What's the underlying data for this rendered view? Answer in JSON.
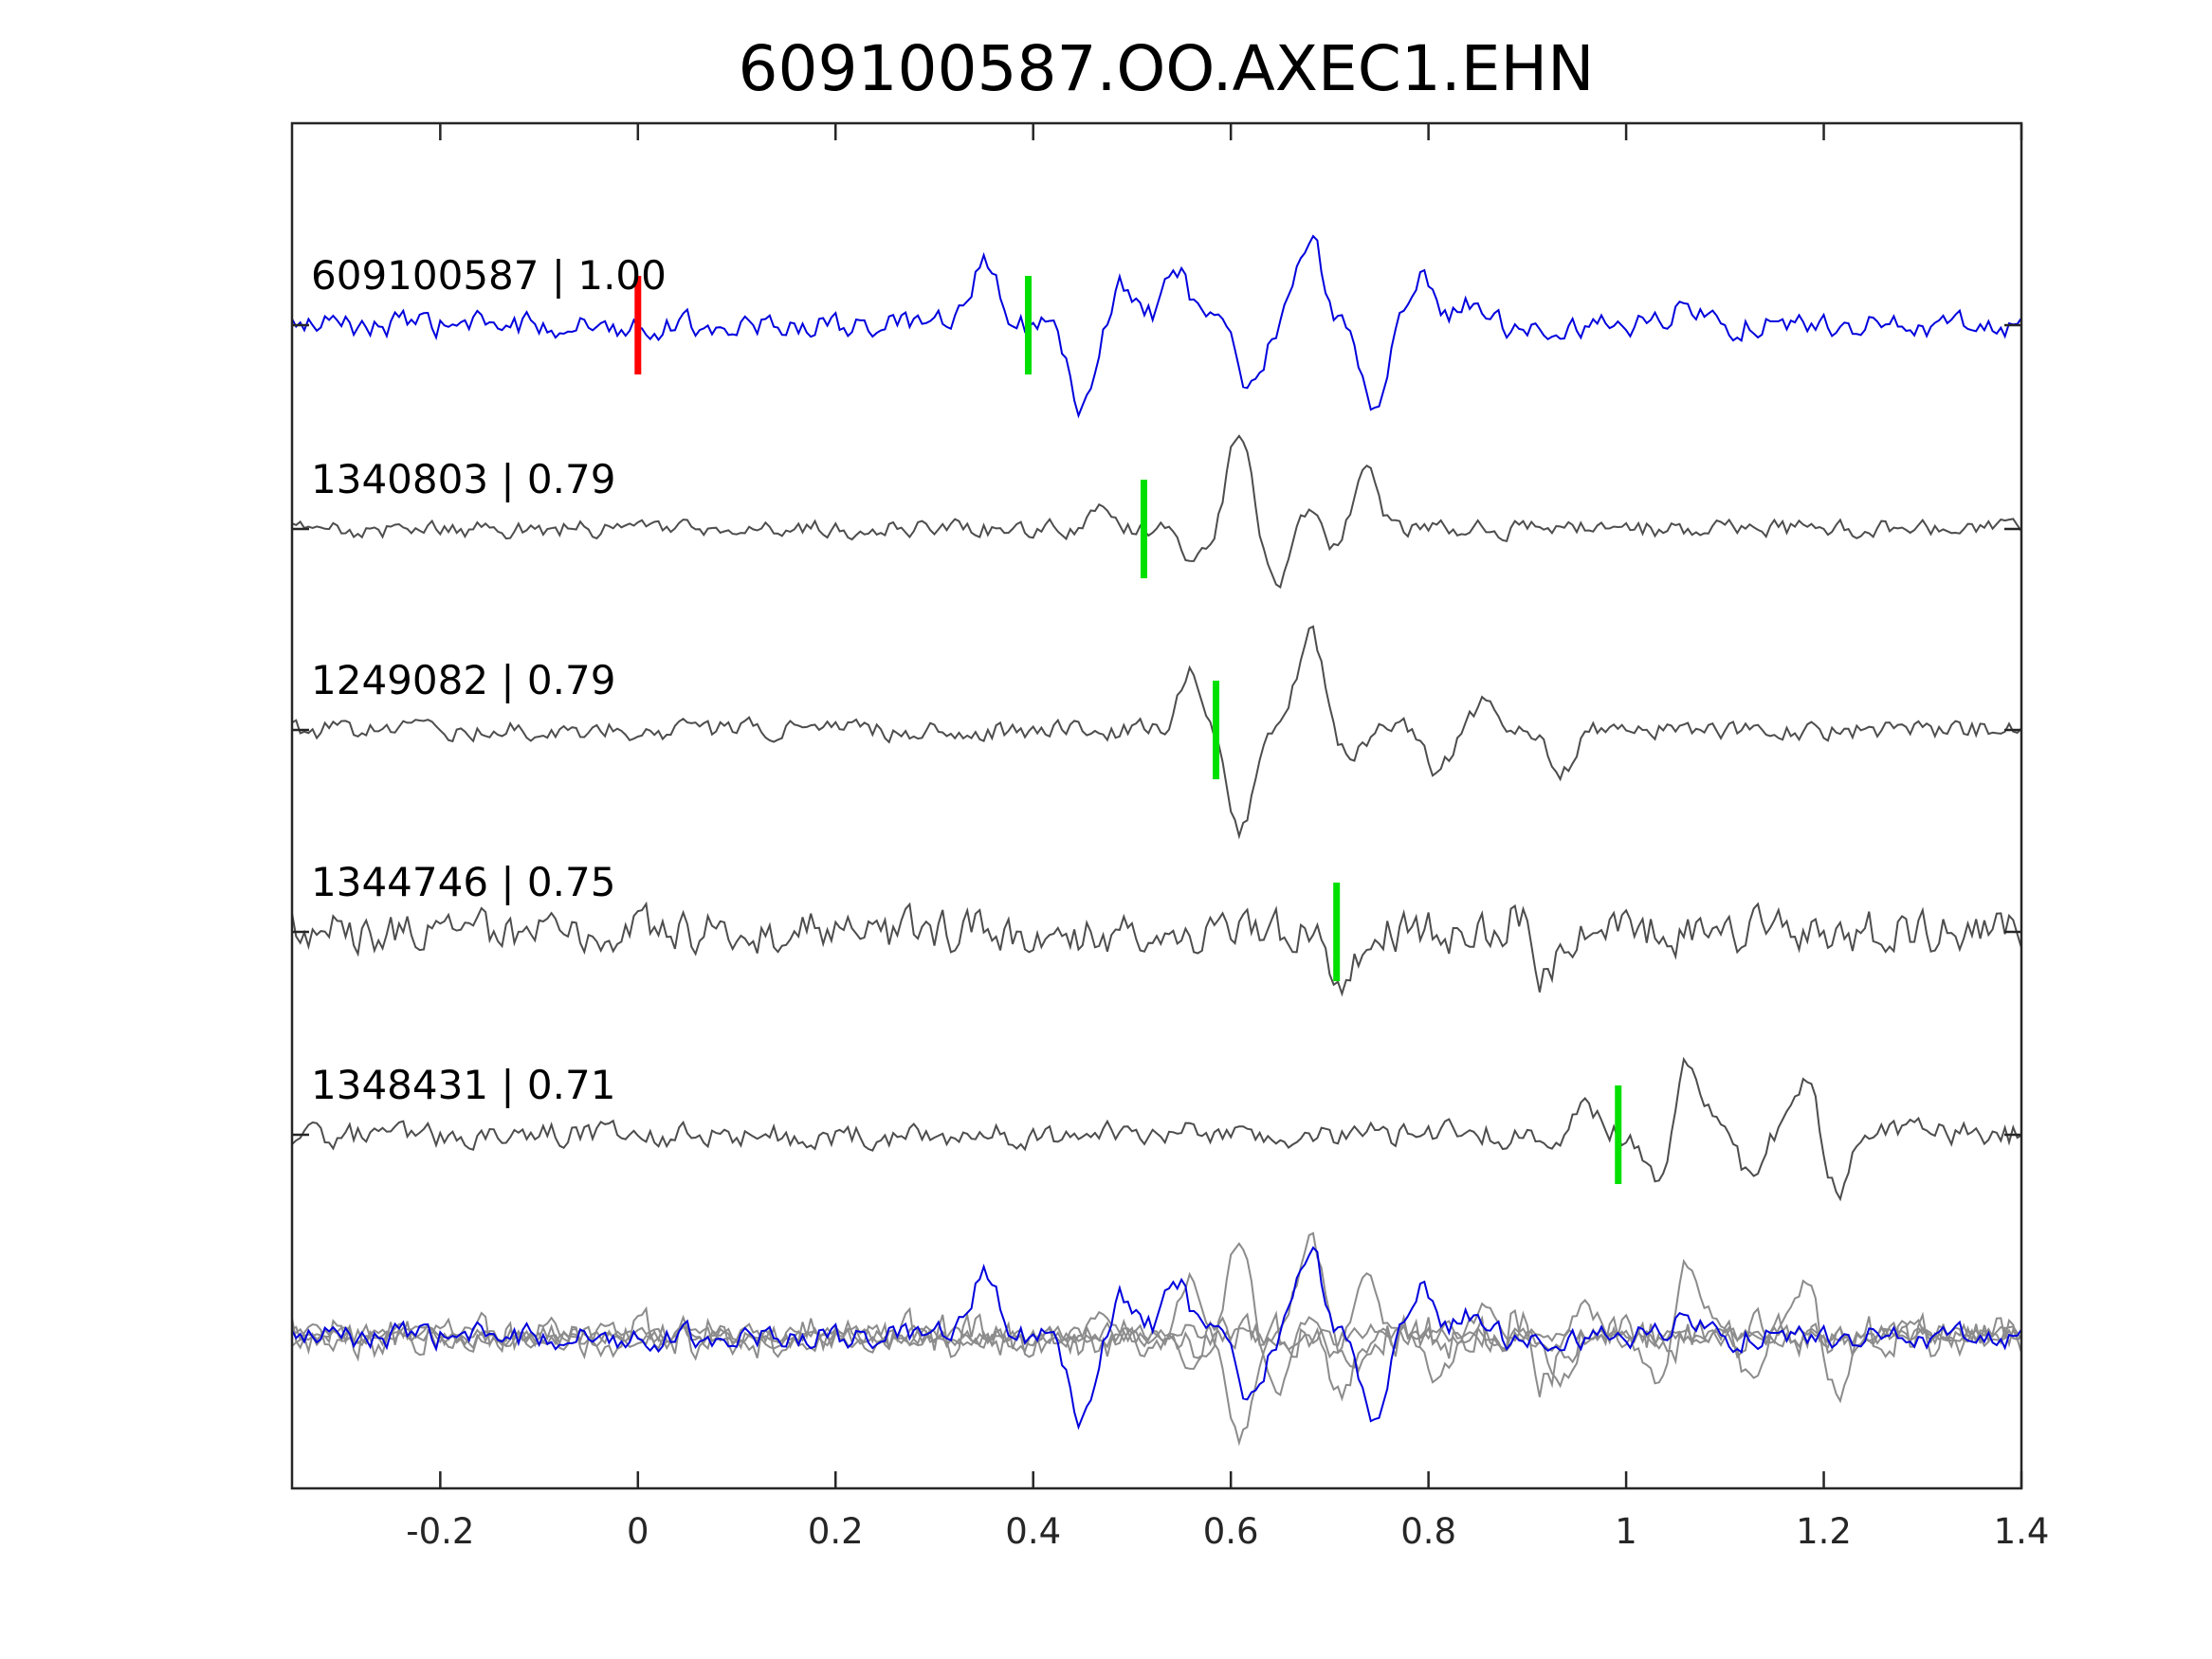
{
  "chart_data": {
    "type": "line",
    "title": "609100587.OO.AXEC1.EHN",
    "xlabel": "",
    "ylabel": "",
    "xlim": [
      -0.35,
      1.4
    ],
    "x_ticks": [
      -0.2,
      0,
      0.2,
      0.4,
      0.6,
      0.8,
      1,
      1.2,
      1.4
    ],
    "x_tick_labels": [
      "-0.2",
      "0",
      "0.2",
      "0.4",
      "0.6",
      "0.8",
      "1",
      "1.2",
      "1.4"
    ],
    "grid": false,
    "legend": "none",
    "colors": {
      "reference": "#0000dd",
      "other": "#4d4d4d",
      "overlay": "#8c8c8c",
      "template_pick": "#ff0000",
      "pick": "#00e000"
    },
    "series": [
      {
        "label": "609100587 | 1.00",
        "event_id": "609100587",
        "correlation": 1.0,
        "is_reference": true,
        "pick_time": 0.395,
        "template_pick_time": 0.0,
        "features": [
          {
            "t": 0.35,
            "a": 0.9
          },
          {
            "t": 0.45,
            "a": -1.2
          },
          {
            "t": 0.49,
            "a": 0.55
          },
          {
            "t": 0.545,
            "a": 0.75
          },
          {
            "t": 0.62,
            "a": -0.95
          },
          {
            "t": 0.68,
            "a": 1.25
          },
          {
            "t": 0.745,
            "a": -1.15
          },
          {
            "t": 0.79,
            "a": 0.7
          },
          {
            "t": 0.845,
            "a": 0.35
          },
          {
            "t": 1.06,
            "a": 0.3
          }
        ],
        "noise": 0.28
      },
      {
        "label": "1340803 | 0.79",
        "event_id": "1340803",
        "correlation": 0.79,
        "is_reference": false,
        "pick_time": 0.512,
        "features": [
          {
            "t": 0.47,
            "a": 0.45
          },
          {
            "t": 0.565,
            "a": -0.45
          },
          {
            "t": 0.61,
            "a": 1.4
          },
          {
            "t": 0.645,
            "a": -0.85
          },
          {
            "t": 0.685,
            "a": 0.35
          },
          {
            "t": 0.705,
            "a": -0.4
          },
          {
            "t": 0.735,
            "a": 0.85
          }
        ],
        "noise": 0.2
      },
      {
        "label": "1249082 | 0.79",
        "event_id": "1249082",
        "correlation": 0.79,
        "is_reference": false,
        "pick_time": 0.585,
        "features": [
          {
            "t": 0.56,
            "a": 0.8
          },
          {
            "t": 0.61,
            "a": -1.4
          },
          {
            "t": 0.68,
            "a": 1.35
          },
          {
            "t": 0.72,
            "a": -0.35
          },
          {
            "t": 0.81,
            "a": -0.55
          },
          {
            "t": 0.86,
            "a": 0.5
          },
          {
            "t": 0.935,
            "a": -0.55
          }
        ],
        "noise": 0.22
      },
      {
        "label": "1344746 | 0.75",
        "event_id": "1344746",
        "correlation": 0.75,
        "is_reference": false,
        "pick_time": 0.707,
        "features": [
          {
            "t": 0.715,
            "a": -0.8
          },
          {
            "t": 0.915,
            "a": -0.75
          },
          {
            "t": 0.895,
            "a": 0.45
          }
        ],
        "noise": 0.48
      },
      {
        "label": "1348431 | 0.71",
        "event_id": "1348431",
        "correlation": 0.71,
        "is_reference": false,
        "pick_time": 0.992,
        "features": [
          {
            "t": 0.96,
            "a": 0.4
          },
          {
            "t": 1.035,
            "a": -0.7
          },
          {
            "t": 1.065,
            "a": 1.1
          },
          {
            "t": 1.125,
            "a": -0.55
          },
          {
            "t": 1.18,
            "a": 0.75
          },
          {
            "t": 1.215,
            "a": -0.75
          }
        ],
        "noise": 0.28
      }
    ]
  }
}
